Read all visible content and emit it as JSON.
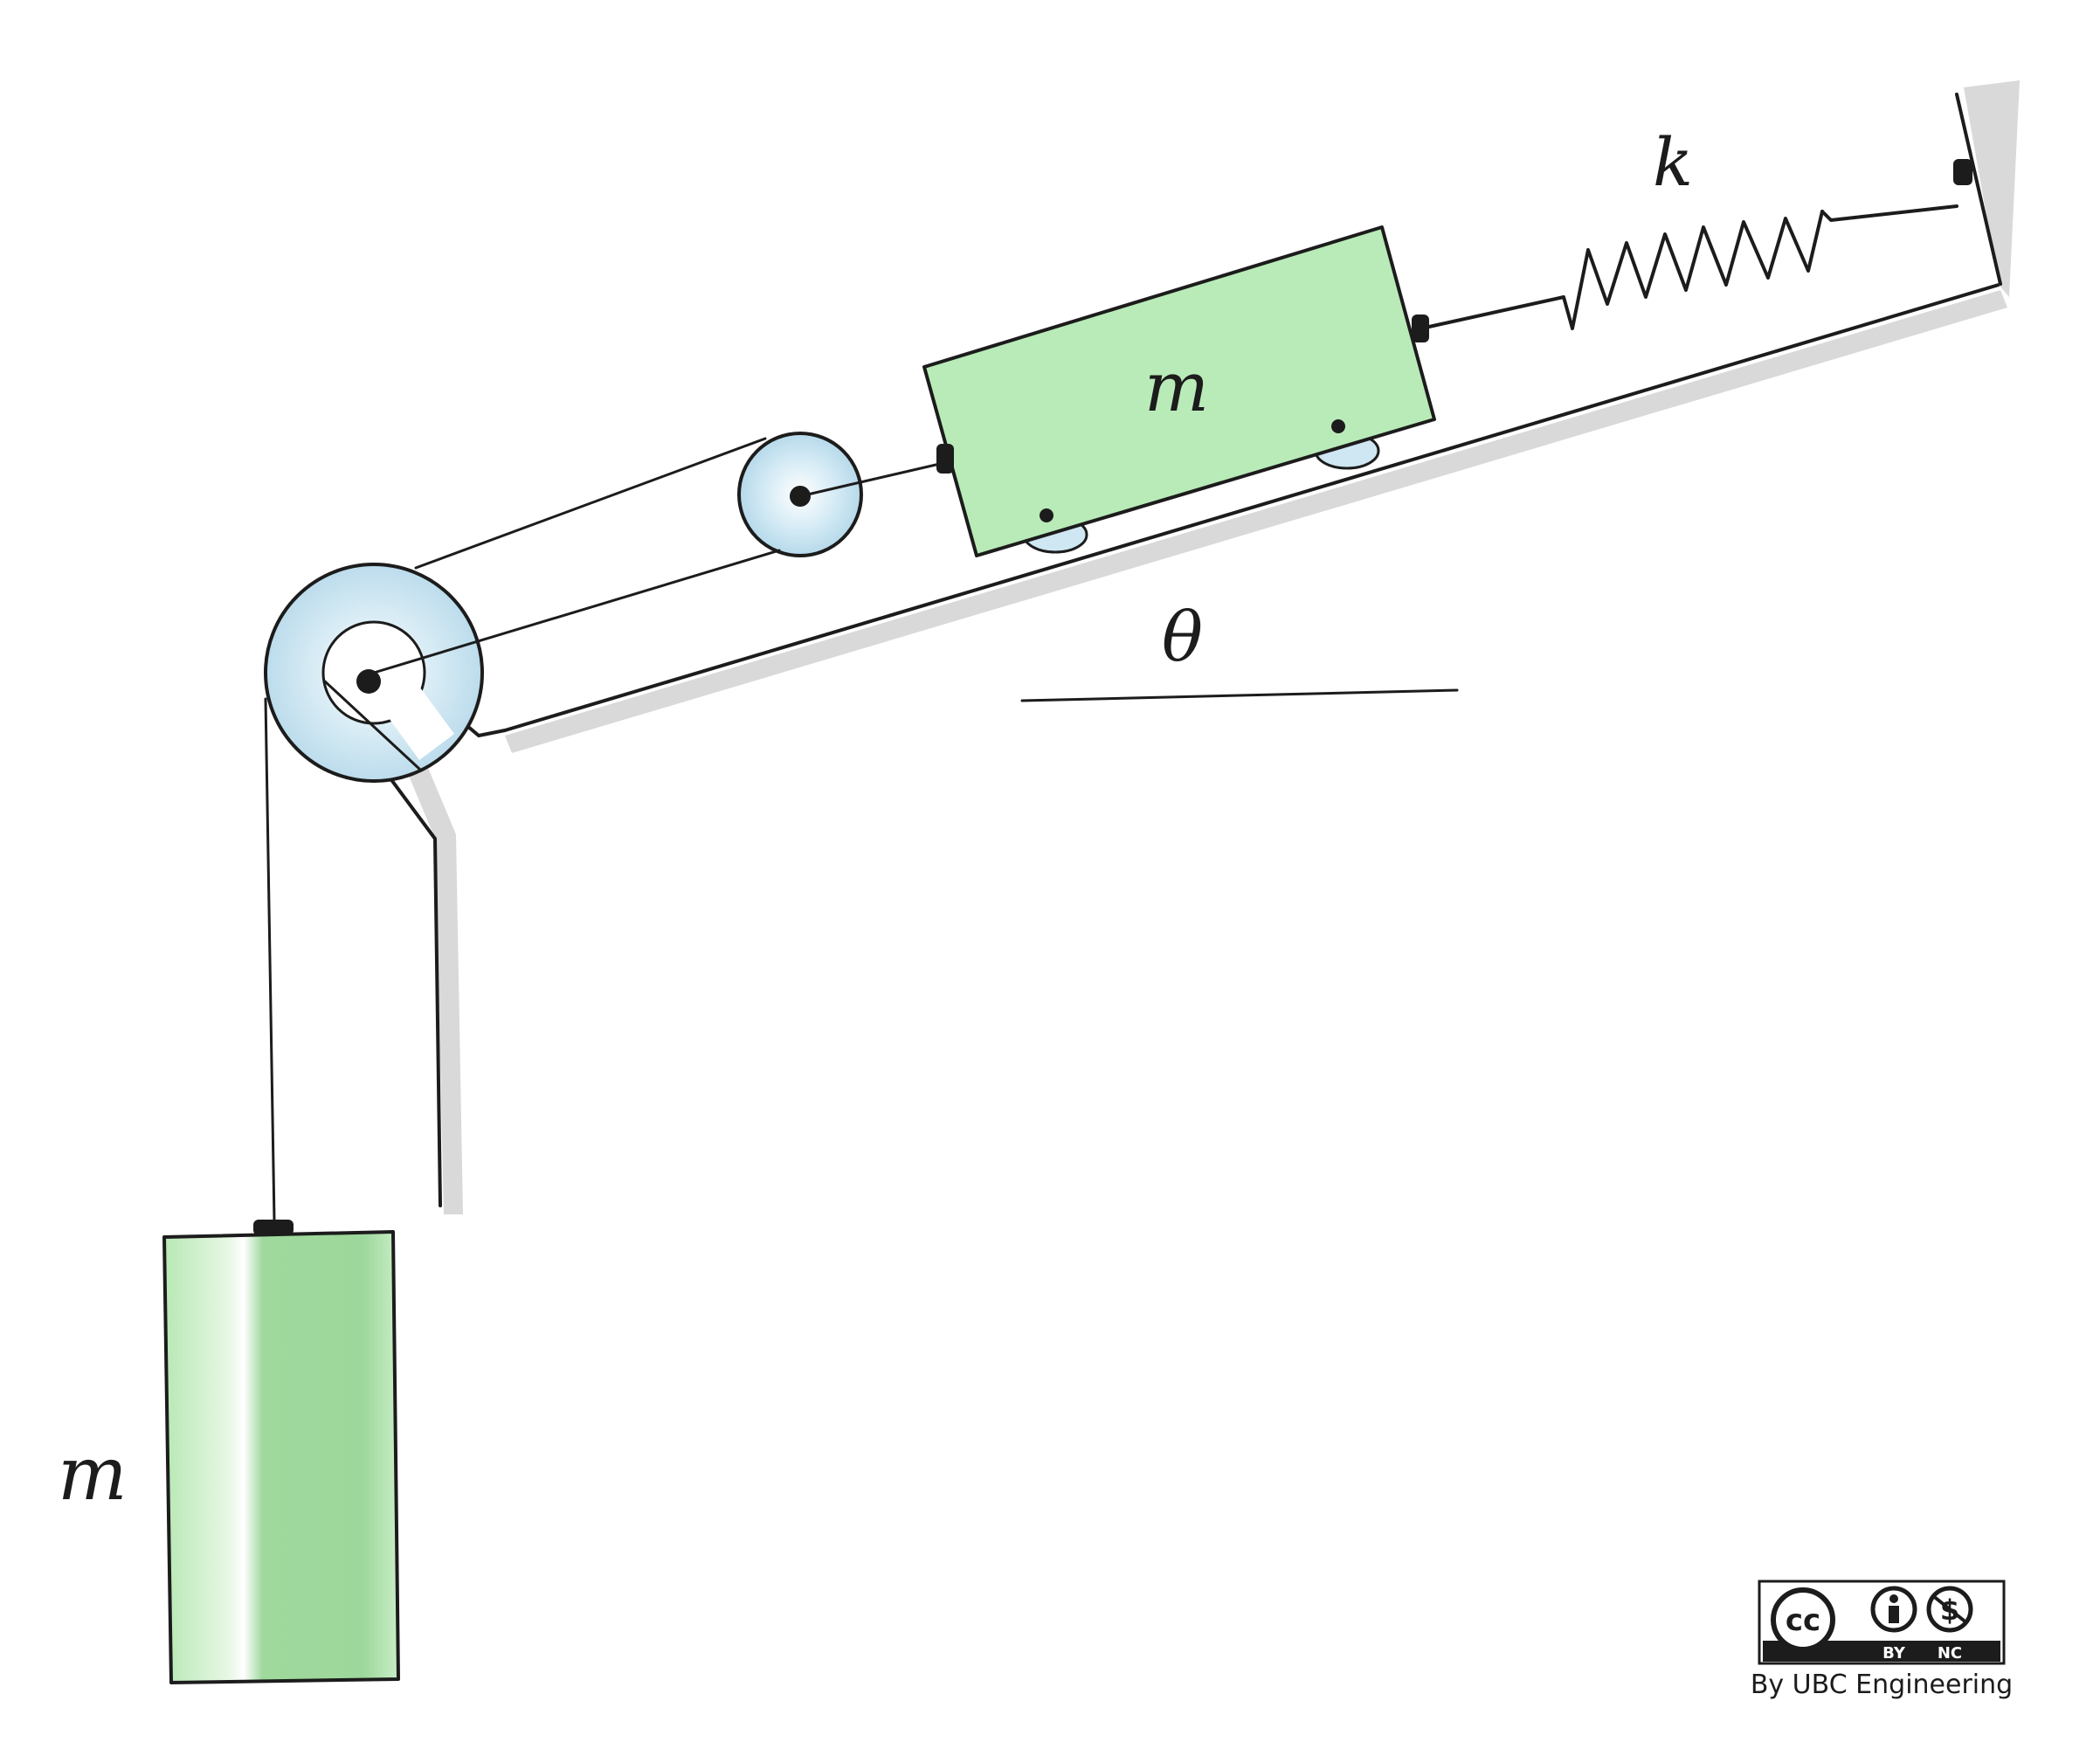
{
  "figure": {
    "labels": {
      "incline_mass": "m",
      "hanging_mass": "m",
      "spring_constant": "k",
      "angle": "θ"
    },
    "colors": {
      "mass_fill": "#b9ebb8",
      "hanging_mass_fill": "#9fd99c",
      "pulley_fill": "#cfe7f3",
      "surface_shadow": "#d6d6d6",
      "ink": "#1c1c1c"
    },
    "icons": [
      "creative-commons-icon",
      "attribution-icon",
      "noncommercial-icon"
    ]
  },
  "license": {
    "by_label": "BY",
    "nc_label": "NC",
    "credit": "By UBC Engineering"
  }
}
